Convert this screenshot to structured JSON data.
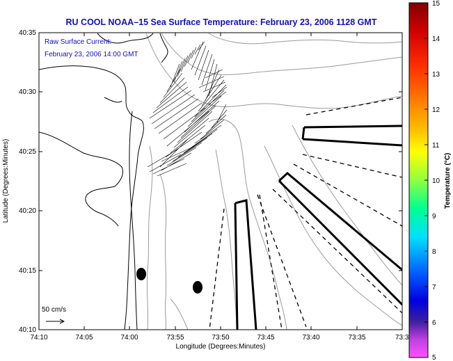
{
  "title": "RU COOL  NOAA–15  Sea Surface Temperature:  February 23, 2006 1128 GMT",
  "annotation": {
    "line1": "Raw Surface Current:",
    "line2": "February 23, 2006 14:00 GMT"
  },
  "axes": {
    "x_label": "Longitude (Degrees:Minutes)",
    "y_label": "Latitude (Degrees:Minutes)",
    "x_ticks": [
      "74:10",
      "74:05",
      "74:00",
      "73:55",
      "73:50",
      "73:45",
      "73:40",
      "73:35",
      "73:3"
    ],
    "y_ticks": [
      "40:35",
      "40:30",
      "40:25",
      "40:20",
      "40:15",
      "40:10"
    ]
  },
  "colorbar": {
    "label": "Temperature (°C)",
    "ticks": [
      "15",
      "14",
      "13",
      "12",
      "11",
      "10",
      "9",
      "8",
      "7",
      "6",
      "5"
    ]
  },
  "scale_label": "50 cm/s",
  "colors": {
    "title": "#1010c0",
    "land_outline": "#000000",
    "bathymetry": "#9a9a9a"
  }
}
